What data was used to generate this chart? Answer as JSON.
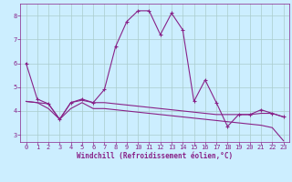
{
  "xlabel": "Windchill (Refroidissement éolien,°C)",
  "background_color": "#cceeff",
  "grid_color": "#aacccc",
  "line_color": "#882288",
  "xlim": [
    -0.5,
    23.5
  ],
  "ylim": [
    2.7,
    8.5
  ],
  "yticks": [
    3,
    4,
    5,
    6,
    7,
    8
  ],
  "xticks": [
    0,
    1,
    2,
    3,
    4,
    5,
    6,
    7,
    8,
    9,
    10,
    11,
    12,
    13,
    14,
    15,
    16,
    17,
    18,
    19,
    20,
    21,
    22,
    23
  ],
  "series1_x": [
    0,
    1,
    2,
    3,
    4,
    5,
    6,
    7,
    8,
    9,
    10,
    11,
    12,
    13,
    14,
    15,
    16,
    17,
    18,
    19,
    20,
    21,
    22,
    23
  ],
  "series1_y": [
    6.0,
    4.5,
    4.3,
    3.65,
    4.35,
    4.5,
    4.35,
    4.9,
    6.7,
    7.75,
    8.2,
    8.2,
    7.2,
    8.1,
    7.4,
    4.4,
    5.3,
    4.35,
    3.35,
    3.85,
    3.85,
    4.05,
    3.9,
    3.75
  ],
  "series2_x": [
    0,
    1,
    2,
    3,
    4,
    5,
    6,
    7,
    8,
    9,
    10,
    11,
    12,
    13,
    14,
    15,
    16,
    17,
    18,
    19,
    20,
    21,
    22,
    23
  ],
  "series2_y": [
    4.4,
    4.35,
    4.3,
    3.65,
    4.35,
    4.45,
    4.35,
    4.35,
    4.3,
    4.25,
    4.2,
    4.15,
    4.1,
    4.05,
    4.0,
    3.95,
    3.9,
    3.85,
    3.85,
    3.85,
    3.85,
    3.9,
    3.9,
    3.75
  ],
  "series3_x": [
    0,
    1,
    2,
    3,
    4,
    5,
    6,
    7,
    8,
    9,
    10,
    11,
    12,
    13,
    14,
    15,
    16,
    17,
    18,
    19,
    20,
    21,
    22,
    23
  ],
  "series3_y": [
    4.4,
    4.35,
    4.1,
    3.65,
    4.1,
    4.35,
    4.1,
    4.1,
    4.05,
    4.0,
    3.95,
    3.9,
    3.85,
    3.8,
    3.75,
    3.7,
    3.65,
    3.6,
    3.55,
    3.5,
    3.45,
    3.4,
    3.3,
    2.75
  ]
}
